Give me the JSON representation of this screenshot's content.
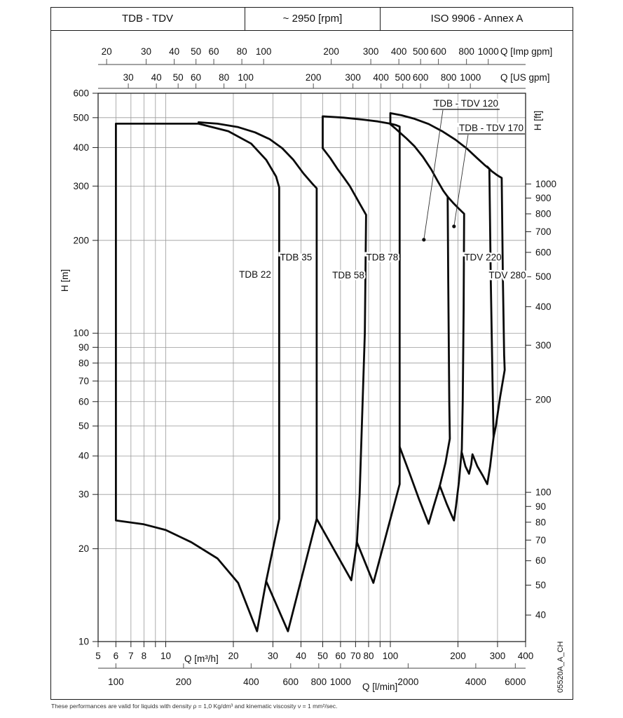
{
  "header": {
    "model_range": "TDB - TDV",
    "speed": "~ 2950 [rpm]",
    "standard": "ISO 9906 - Annex A"
  },
  "footer": {
    "note": "These performances are valid for liquids with density ρ = 1,0 Kg/dm³ and kinematic viscosity ν = 1 mm²/sec."
  },
  "doc_code": "05520A_A_CH",
  "colors": {
    "ink": "#111111",
    "grid": "#9a9a9a",
    "curve": "#0a0a0a",
    "axis": "#444444"
  },
  "chart_data": {
    "type": "line",
    "description": "Pump family coverage chart (head vs flow envelopes), log-log axes",
    "x_axis_main": {
      "label": "Q [m³/h]",
      "scale": "log",
      "range": [
        5,
        400
      ],
      "tick_values": [
        5,
        6,
        7,
        8,
        9,
        10,
        20,
        30,
        40,
        50,
        60,
        70,
        80,
        90,
        100,
        200,
        300,
        400
      ],
      "labeled_ticks": [
        5,
        6,
        7,
        8,
        10,
        20,
        30,
        40,
        50,
        60,
        70,
        80,
        100,
        200,
        300,
        400
      ],
      "gridline_values": [
        6,
        7,
        8,
        9,
        10,
        20,
        30,
        40,
        50,
        60,
        70,
        80,
        90,
        100,
        200,
        300
      ]
    },
    "x_axis_lmin": {
      "label": "Q [l/min]",
      "unit_per_m3h": 16.6667,
      "labeled_ticks": [
        100,
        200,
        400,
        600,
        800,
        1000,
        2000,
        4000,
        6000
      ]
    },
    "x_axis_imp_gpm": {
      "label": "Q [Imp gpm]",
      "m3h_per_unit": 0.27277,
      "labeled_ticks": [
        20,
        30,
        40,
        50,
        60,
        80,
        100,
        200,
        300,
        400,
        500,
        600,
        800,
        1000
      ]
    },
    "x_axis_us_gpm": {
      "label": "Q [US gpm]",
      "m3h_per_unit": 0.22712,
      "labeled_ticks": [
        30,
        40,
        50,
        60,
        80,
        100,
        200,
        300,
        400,
        500,
        600,
        800,
        1000
      ]
    },
    "y_axis_m": {
      "label": "H [m]",
      "scale": "log",
      "range": [
        10,
        600
      ],
      "labeled_ticks": [
        10,
        20,
        30,
        40,
        50,
        60,
        70,
        80,
        90,
        100,
        200,
        300,
        400,
        500,
        600
      ],
      "gridline_values": [
        20,
        30,
        40,
        50,
        60,
        70,
        80,
        90,
        100,
        200,
        300,
        400,
        500,
        600
      ]
    },
    "y_axis_ft": {
      "label": "H [ft]",
      "m_per_unit": 0.3048,
      "labeled_ticks": [
        40,
        50,
        60,
        70,
        80,
        90,
        100,
        200,
        300,
        400,
        500,
        600,
        700,
        800,
        900,
        1000
      ]
    },
    "series": [
      {
        "name": "TDB 22",
        "closed": true,
        "label_at": [
          25,
          155
        ],
        "outline_QH": [
          [
            6,
            478
          ],
          [
            14,
            478
          ],
          [
            19,
            452
          ],
          [
            24,
            412
          ],
          [
            28,
            365
          ],
          [
            31,
            322
          ],
          [
            32,
            297
          ],
          [
            32,
            25
          ],
          [
            28,
            15.7
          ],
          [
            25.5,
            10.8
          ],
          [
            21,
            15.5
          ],
          [
            17,
            18.6
          ],
          [
            13,
            21
          ],
          [
            10,
            23
          ],
          [
            8,
            24
          ],
          [
            6,
            24.7
          ]
        ]
      },
      {
        "name": "TDB 35",
        "closed": false,
        "label_at": [
          38,
          176
        ],
        "outline_QH": [
          [
            14,
            483
          ],
          [
            17,
            478
          ],
          [
            21,
            466
          ],
          [
            25,
            448
          ],
          [
            29,
            426
          ],
          [
            33,
            398
          ],
          [
            37,
            365
          ],
          [
            41,
            330
          ],
          [
            45,
            305
          ],
          [
            47,
            295
          ],
          [
            47,
            25
          ],
          [
            35,
            10.8
          ],
          [
            28,
            15.7
          ]
        ]
      },
      {
        "name": "TDB 58",
        "closed": false,
        "label_at": [
          65,
          154
        ],
        "outline_QH": [
          [
            50,
            398
          ],
          [
            54,
            370
          ],
          [
            58,
            342
          ],
          [
            62,
            320
          ],
          [
            66,
            300
          ],
          [
            72,
            268
          ],
          [
            78,
            242
          ],
          [
            77,
            100
          ],
          [
            73,
            30
          ],
          [
            71,
            21
          ],
          [
            67,
            15.8
          ],
          [
            47,
            25
          ]
        ]
      },
      {
        "name": "TDB 78",
        "closed": false,
        "label_at": [
          92,
          176
        ],
        "outline_QH": [
          [
            50,
            398
          ],
          [
            50,
            505
          ],
          [
            62,
            500
          ],
          [
            75,
            493
          ],
          [
            88,
            486
          ],
          [
            100,
            478
          ],
          [
            106,
            473
          ],
          [
            110,
            468
          ],
          [
            110,
            32.4
          ],
          [
            84,
            15.5
          ],
          [
            71,
            21
          ]
        ]
      },
      {
        "name": "TDB - TDV 120",
        "closed": false,
        "label_at": null,
        "callout": {
          "text": "TDB - TDV 120",
          "dot_QH": [
            141,
            201
          ]
        },
        "outline_QH": [
          [
            100,
            476
          ],
          [
            105,
            462
          ],
          [
            110,
            448
          ],
          [
            118,
            428
          ],
          [
            128,
            404
          ],
          [
            140,
            372
          ],
          [
            152,
            340
          ],
          [
            163,
            310
          ],
          [
            172,
            290
          ],
          [
            180,
            277
          ],
          [
            181,
            150
          ],
          [
            183,
            60
          ],
          [
            184,
            45.5
          ],
          [
            176,
            38
          ],
          [
            166,
            32
          ],
          [
            156,
            27.5
          ],
          [
            148,
            24.1
          ],
          [
            134,
            29
          ],
          [
            122,
            35
          ],
          [
            110,
            42.8
          ]
        ]
      },
      {
        "name": "TDB - TDV 170",
        "closed": false,
        "label_at": null,
        "callout": {
          "text": "TDB - TDV 170",
          "dot_QH": [
            192,
            222
          ]
        },
        "outline_QH": [
          [
            180,
            277
          ],
          [
            190,
            265
          ],
          [
            200,
            255
          ],
          [
            208,
            248
          ],
          [
            213,
            244
          ],
          [
            212,
            120
          ],
          [
            210,
            60
          ],
          [
            208,
            42
          ],
          [
            202,
            33
          ],
          [
            196,
            27.5
          ],
          [
            192,
            24.7
          ],
          [
            186,
            26
          ],
          [
            178,
            28
          ],
          [
            166,
            32
          ]
        ]
      },
      {
        "name": "TDV 220",
        "closed": false,
        "label_at": [
          258,
          176
        ],
        "outline_QH": [
          [
            100,
            478
          ],
          [
            100,
            517
          ],
          [
            112,
            509
          ],
          [
            128,
            496
          ],
          [
            148,
            477
          ],
          [
            170,
            452
          ],
          [
            195,
            424
          ],
          [
            220,
            396
          ],
          [
            243,
            370
          ],
          [
            262,
            352
          ],
          [
            276,
            341
          ],
          [
            280,
            150
          ],
          [
            285,
            70
          ],
          [
            288,
            46
          ],
          [
            278,
            37
          ],
          [
            270,
            32.4
          ],
          [
            258,
            34.5
          ],
          [
            244,
            37
          ],
          [
            232,
            40.5
          ],
          [
            229,
            37.5
          ],
          [
            224,
            35
          ],
          [
            216,
            37
          ],
          [
            208,
            41
          ]
        ]
      },
      {
        "name": "TDV 280",
        "closed": false,
        "label_at": [
          332,
          154
        ],
        "outline_QH": [
          [
            270,
            347
          ],
          [
            283,
            335
          ],
          [
            296,
            327
          ],
          [
            306,
            322
          ],
          [
            313,
            319
          ],
          [
            317,
            150
          ],
          [
            321,
            85
          ],
          [
            323,
            76
          ],
          [
            308,
            62
          ],
          [
            295,
            50
          ],
          [
            288,
            46
          ]
        ]
      }
    ],
    "callout_labels": [
      {
        "text": "TDB - TDV 120",
        "dot_QH": [
          141,
          201
        ]
      },
      {
        "text": "TDB - TDV 170",
        "dot_QH": [
          192,
          222
        ]
      }
    ]
  }
}
